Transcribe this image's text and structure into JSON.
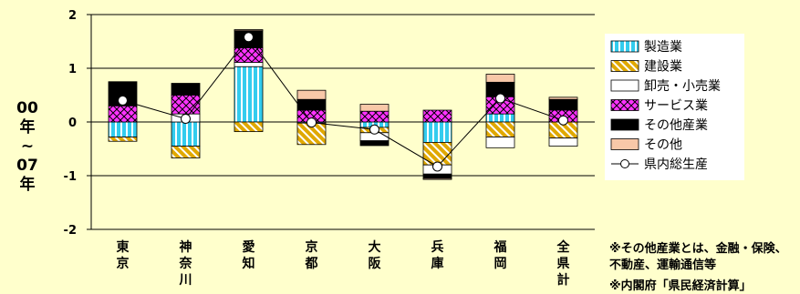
{
  "chart_data": {
    "type": "bar",
    "stacked": true,
    "y_axis_title": [
      "00",
      "年",
      "~",
      "07",
      "年"
    ],
    "ylim": [
      -2,
      2
    ],
    "yticks": [
      "2",
      "1",
      "0",
      "-1",
      "-2"
    ],
    "categories": [
      {
        "name": "東京",
        "label_lines": [
          "東",
          "京"
        ]
      },
      {
        "name": "神奈川",
        "label_lines": [
          "神",
          "奈",
          "川"
        ]
      },
      {
        "name": "愛知",
        "label_lines": [
          "愛",
          "知"
        ]
      },
      {
        "name": "京都",
        "label_lines": [
          "京",
          "都"
        ]
      },
      {
        "name": "大阪",
        "label_lines": [
          "大",
          "阪"
        ]
      },
      {
        "name": "兵庫",
        "label_lines": [
          "兵",
          "庫"
        ]
      },
      {
        "name": "福岡",
        "label_lines": [
          "福",
          "岡"
        ]
      },
      {
        "name": "全県計",
        "label_lines": [
          "全",
          "県",
          "計"
        ]
      }
    ],
    "series": [
      {
        "name": "製造業",
        "pattern": "vertical-stripes-cyan",
        "color": "#33ccee",
        "values": [
          -0.28,
          -0.45,
          1.03,
          -0.02,
          -0.1,
          -0.38,
          0.15,
          0.0
        ]
      },
      {
        "name": "建設業",
        "pattern": "diagonal-gold",
        "color": "#e0a800",
        "values": [
          -0.08,
          -0.22,
          -0.18,
          -0.4,
          -0.1,
          -0.42,
          -0.28,
          -0.3
        ]
      },
      {
        "name": "卸売・小売業",
        "pattern": "white",
        "color": "#ffffff",
        "values": [
          0.0,
          0.15,
          0.08,
          0.0,
          -0.15,
          -0.17,
          -0.2,
          -0.15
        ]
      },
      {
        "name": "サービス業",
        "pattern": "diamond-magenta",
        "color": "#ff33ff",
        "values": [
          0.3,
          0.35,
          0.27,
          0.22,
          0.2,
          0.22,
          0.32,
          0.22
        ]
      },
      {
        "name": "その他産業",
        "pattern": "solid-black",
        "color": "#000000",
        "values": [
          0.45,
          0.22,
          0.32,
          0.2,
          -0.09,
          -0.08,
          0.27,
          0.2
        ]
      },
      {
        "name": "その他",
        "pattern": "solid-peach",
        "color": "#f8c8a8",
        "values": [
          0.0,
          0.0,
          0.02,
          0.17,
          0.13,
          -0.02,
          0.15,
          0.04
        ]
      }
    ],
    "line": {
      "name": "県内総生産",
      "values": [
        0.4,
        0.06,
        1.58,
        -0.01,
        -0.14,
        -0.83,
        0.44,
        0.03
      ]
    },
    "legend_position": "right"
  },
  "notes": {
    "line1": "※その他産業とは、金融・保険、",
    "line2": "不動産、運輸通信等",
    "source": "※内閣府「県民経済計算」"
  }
}
